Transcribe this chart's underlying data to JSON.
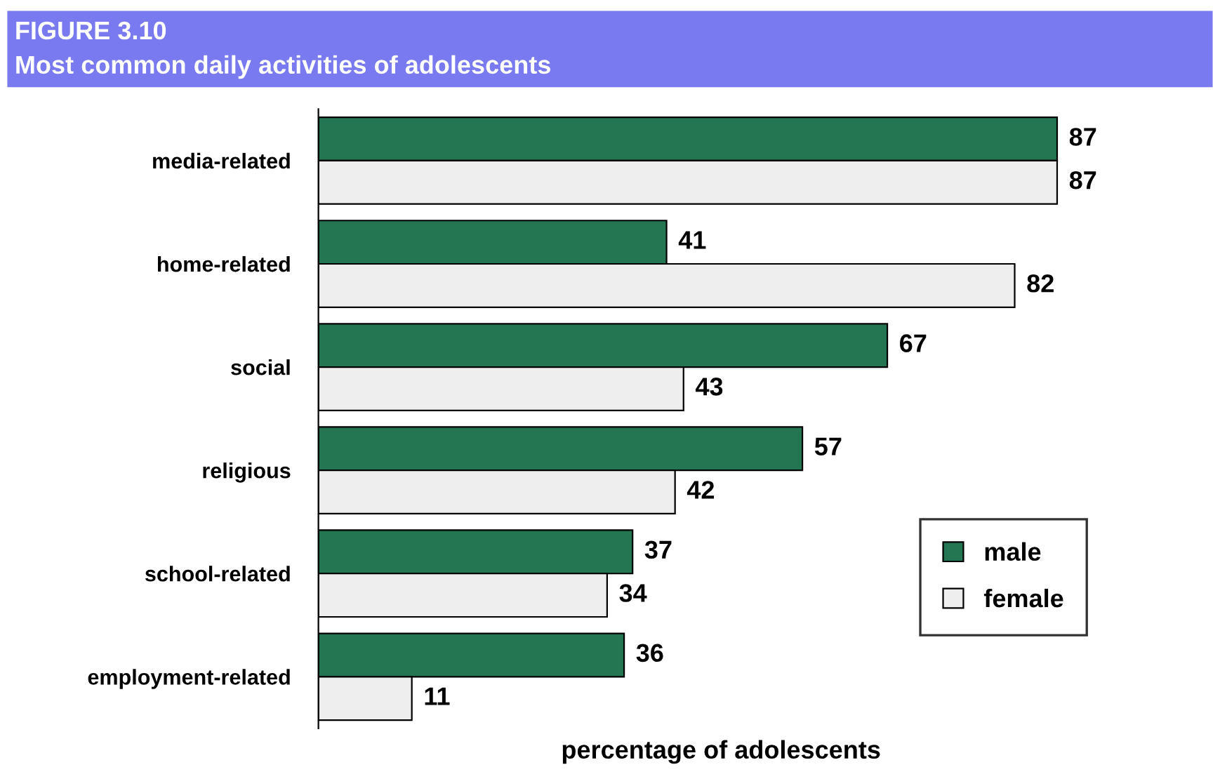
{
  "chart_data": {
    "type": "bar",
    "orientation": "horizontal",
    "title": "FIGURE 3.10",
    "subtitle": "Most common daily activities of adolescents",
    "xlabel": "percentage of adolescents",
    "categories": [
      "media-related",
      "home-related",
      "social",
      "religious",
      "school-related",
      "employment-related"
    ],
    "series": [
      {
        "name": "male",
        "color": "#247552",
        "values": [
          87,
          41,
          67,
          57,
          37,
          36
        ]
      },
      {
        "name": "female",
        "color": "#eeeeee",
        "values": [
          87,
          82,
          43,
          42,
          34,
          11
        ]
      }
    ],
    "data_labels": true,
    "legend": "bottom right",
    "grid": false
  }
}
